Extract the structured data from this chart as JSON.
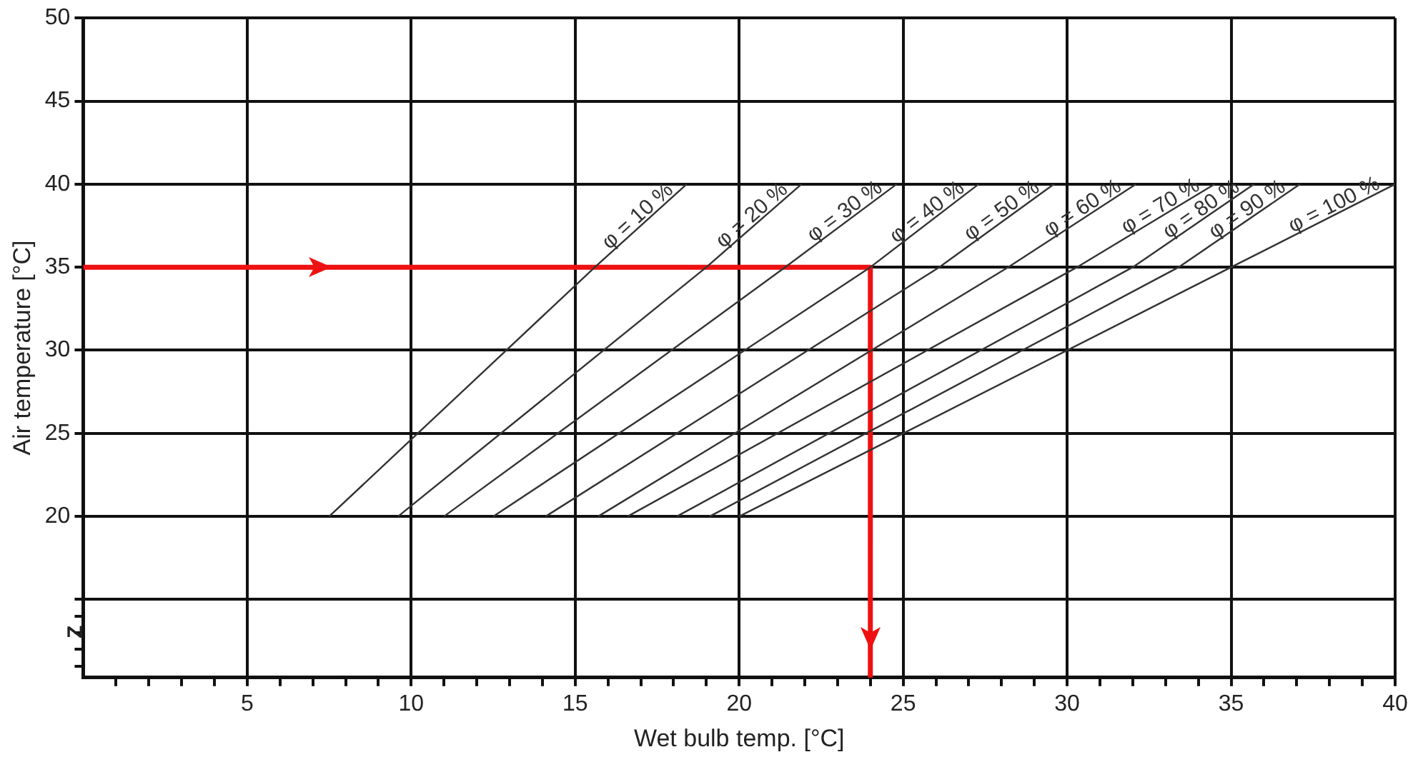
{
  "chart_data": {
    "type": "line",
    "xlabel": "Wet bulb temp. [°C]",
    "ylabel": "Air temperature [°C]",
    "xlim": [
      0,
      40
    ],
    "ylim": [
      10.3,
      50
    ],
    "xticks": [
      {
        "value": 1,
        "label": null
      },
      {
        "value": 2,
        "label": null
      },
      {
        "value": 3,
        "label": null
      },
      {
        "value": 4,
        "label": null
      },
      5,
      {
        "value": 6,
        "label": null
      },
      {
        "value": 7,
        "label": null
      },
      {
        "value": 8,
        "label": null
      },
      {
        "value": 9,
        "label": null
      },
      10,
      {
        "value": 11,
        "label": null
      },
      {
        "value": 12,
        "label": null
      },
      {
        "value": 13,
        "label": null
      },
      {
        "value": 14,
        "label": null
      },
      15,
      {
        "value": 16,
        "label": null
      },
      {
        "value": 17,
        "label": null
      },
      {
        "value": 18,
        "label": null
      },
      {
        "value": 19,
        "label": null
      },
      20,
      {
        "value": 21,
        "label": null
      },
      {
        "value": 22,
        "label": null
      },
      {
        "value": 23,
        "label": null
      },
      {
        "value": 24,
        "label": null
      },
      25,
      {
        "value": 26,
        "label": null
      },
      {
        "value": 27,
        "label": null
      },
      {
        "value": 28,
        "label": null
      },
      {
        "value": 29,
        "label": null
      },
      30,
      {
        "value": 31,
        "label": null
      },
      {
        "value": 32,
        "label": null
      },
      {
        "value": 33,
        "label": null
      },
      {
        "value": 34,
        "label": null
      },
      35,
      {
        "value": 36,
        "label": null
      },
      {
        "value": 37,
        "label": null
      },
      {
        "value": 38,
        "label": null
      },
      {
        "value": 39,
        "label": null
      },
      40
    ],
    "yticks": [
      {
        "value": 11,
        "label": null
      },
      {
        "value": 12,
        "label": null
      },
      {
        "value": 13,
        "label": null
      },
      {
        "value": 14,
        "label": null
      },
      {
        "value": 15,
        "label": null
      },
      20,
      25,
      30,
      35,
      40,
      45,
      50
    ],
    "grid": true,
    "legend": false,
    "marker": "none",
    "line_style": "solid",
    "annotations": [
      "Z"
    ],
    "series": [
      {
        "name": "φ = 10 %",
        "color": "#333333",
        "x": [
          7.5,
          15.6,
          18.4
        ],
        "values": [
          20,
          35,
          40
        ]
      },
      {
        "name": "φ = 20 %",
        "color": "#333333",
        "x": [
          9.6,
          19.0,
          21.9
        ],
        "values": [
          20,
          35,
          40
        ]
      },
      {
        "name": "φ = 30 %",
        "color": "#333333",
        "x": [
          11.0,
          21.4,
          24.8
        ],
        "values": [
          20,
          35,
          40
        ]
      },
      {
        "name": "φ = 40 %",
        "color": "#333333",
        "x": [
          12.5,
          24.0,
          27.3
        ],
        "values": [
          20,
          35,
          40
        ]
      },
      {
        "name": "φ = 50 %",
        "color": "#333333",
        "x": [
          14.1,
          26.1,
          29.6
        ],
        "values": [
          20,
          35,
          40
        ]
      },
      {
        "name": "φ = 60 %",
        "color": "#333333",
        "x": [
          15.7,
          28.2,
          32.1
        ],
        "values": [
          20,
          35,
          40
        ]
      },
      {
        "name": "φ = 70 %",
        "color": "#333333",
        "x": [
          16.6,
          30.3,
          34.5
        ],
        "values": [
          20,
          35,
          40
        ]
      },
      {
        "name": "φ = 80 %",
        "color": "#333333",
        "x": [
          18.1,
          32.0,
          35.7
        ],
        "values": [
          20,
          35,
          40
        ]
      },
      {
        "name": "φ = 90 %",
        "color": "#333333",
        "x": [
          19.1,
          33.4,
          37.1
        ],
        "values": [
          20,
          35,
          40
        ]
      },
      {
        "name": "φ = 100 %",
        "color": "#333333",
        "x": [
          20,
          35,
          40
        ],
        "values": [
          20,
          35,
          40
        ]
      },
      {
        "color": "#ee1111",
        "x": [
          0,
          24,
          24
        ],
        "values": [
          35,
          35,
          10.3
        ]
      }
    ]
  }
}
